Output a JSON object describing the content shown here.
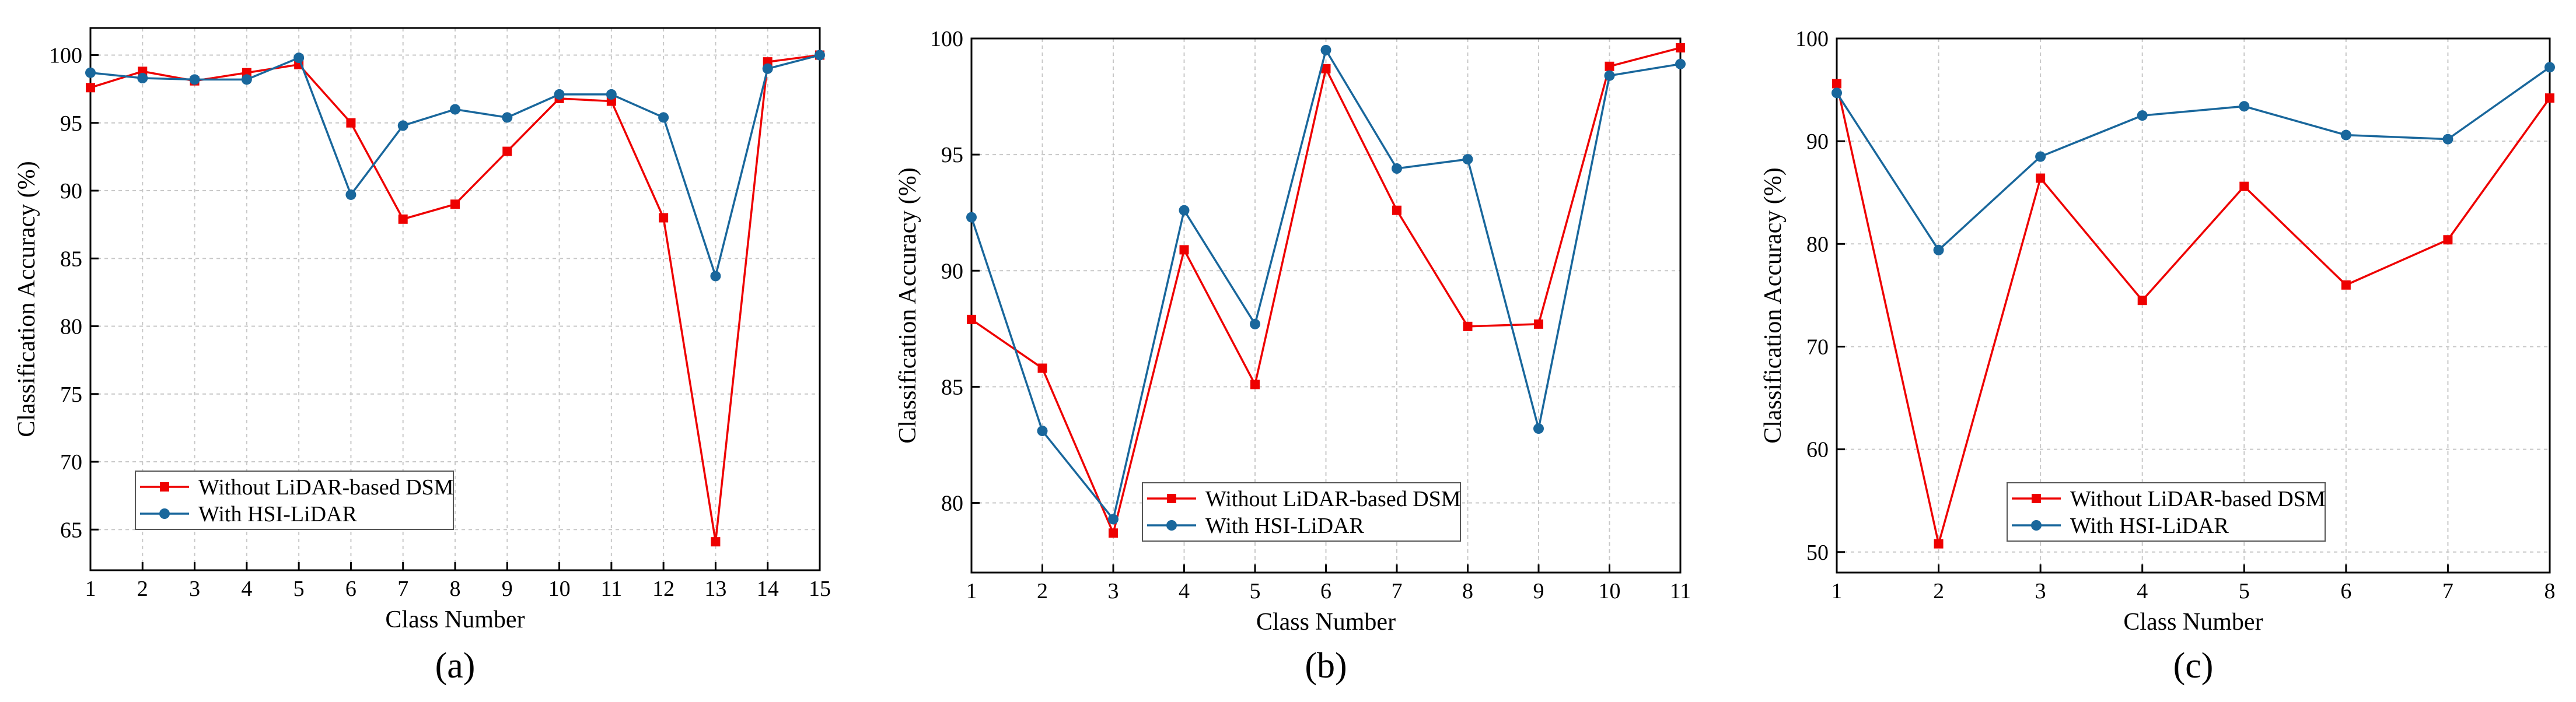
{
  "colors": {
    "series_without": "#ee0000",
    "series_with": "#19679c",
    "grid": "#c8c8c8",
    "axis": "#000000"
  },
  "chart_data": [
    {
      "type": "line",
      "caption": "(a)",
      "xlabel": "Class Number",
      "ylabel": "Classification Accuracy (%)",
      "x": [
        1,
        2,
        3,
        4,
        5,
        6,
        7,
        8,
        9,
        10,
        11,
        12,
        13,
        14,
        15
      ],
      "xlim": [
        1,
        15
      ],
      "ylim": [
        62,
        102
      ],
      "yticks": [
        65,
        70,
        75,
        80,
        85,
        90,
        95,
        100
      ],
      "grid": true,
      "legend_position": "lower-left",
      "series": [
        {
          "name": "Without LiDAR-based DSM",
          "marker": "square",
          "color_key": "series_without",
          "values": [
            97.6,
            98.8,
            98.1,
            98.7,
            99.3,
            95.0,
            87.9,
            89.0,
            92.9,
            96.8,
            96.6,
            88.0,
            64.1,
            99.5,
            100.0
          ]
        },
        {
          "name": "With HSI-LiDAR",
          "marker": "circle",
          "color_key": "series_with",
          "values": [
            98.7,
            98.3,
            98.2,
            98.2,
            99.8,
            89.7,
            94.8,
            96.0,
            95.4,
            97.1,
            97.1,
            95.4,
            83.7,
            99.0,
            100.0
          ]
        }
      ]
    },
    {
      "type": "line",
      "caption": "(b)",
      "xlabel": "Class Number",
      "ylabel": "Classification Accuracy (%)",
      "x": [
        1,
        2,
        3,
        4,
        5,
        6,
        7,
        8,
        9,
        10,
        11
      ],
      "xlim": [
        1,
        11
      ],
      "ylim": [
        77,
        100
      ],
      "yticks": [
        80,
        85,
        90,
        95,
        100
      ],
      "grid": true,
      "legend_position": "lower-center",
      "series": [
        {
          "name": "Without LiDAR-based DSM",
          "marker": "square",
          "color_key": "series_without",
          "values": [
            87.9,
            85.8,
            78.7,
            90.9,
            85.1,
            98.7,
            92.6,
            87.6,
            87.7,
            98.8,
            99.6
          ]
        },
        {
          "name": "With HSI-LiDAR",
          "marker": "circle",
          "color_key": "series_with",
          "values": [
            92.3,
            83.1,
            79.3,
            92.6,
            87.7,
            99.5,
            94.4,
            94.8,
            83.2,
            98.4,
            98.9
          ]
        }
      ]
    },
    {
      "type": "line",
      "caption": "(c)",
      "xlabel": "Class Number",
      "ylabel": "Classification Accuracy (%)",
      "x": [
        1,
        2,
        3,
        4,
        5,
        6,
        7,
        8
      ],
      "xlim": [
        1,
        8
      ],
      "ylim": [
        48,
        100
      ],
      "yticks": [
        50,
        60,
        70,
        80,
        90,
        100
      ],
      "grid": true,
      "legend_position": "lower-center",
      "series": [
        {
          "name": "Without LiDAR-based DSM",
          "marker": "square",
          "color_key": "series_without",
          "values": [
            95.6,
            50.8,
            86.4,
            74.5,
            85.6,
            76.0,
            80.4,
            94.2
          ]
        },
        {
          "name": "With HSI-LiDAR",
          "marker": "circle",
          "color_key": "series_with",
          "values": [
            94.7,
            79.4,
            88.5,
            92.5,
            93.4,
            90.6,
            90.2,
            97.2
          ]
        }
      ]
    }
  ]
}
